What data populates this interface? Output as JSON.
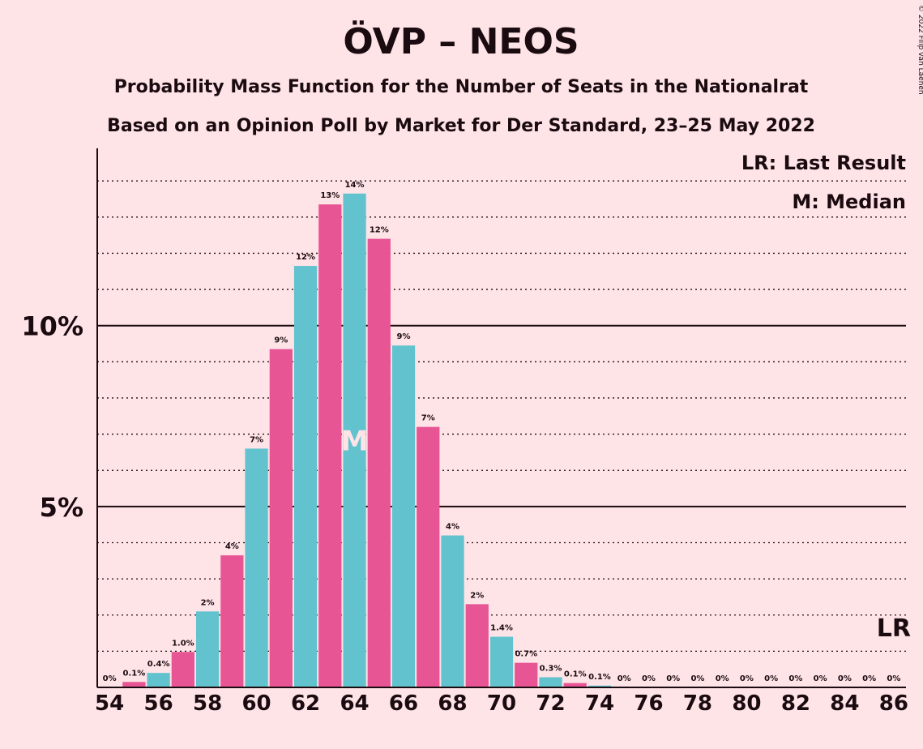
{
  "chart_data": {
    "type": "bar",
    "title": "ÖVP – NEOS",
    "subtitle": "Probability Mass Function for the Number of Seats in the Nationalrat",
    "subtitle2": "Based on an Opinion Poll by Market for Der Standard, 23–25 May 2022",
    "copyright": "© 2022 Filip van Laenen",
    "legend": {
      "position": "top-right",
      "last_result": "LR: Last Result",
      "median": "M: Median"
    },
    "x": [
      54,
      55,
      56,
      57,
      58,
      59,
      60,
      61,
      62,
      63,
      64,
      65,
      66,
      67,
      68,
      69,
      70,
      71,
      72,
      73,
      74,
      75,
      76,
      77,
      78,
      79,
      80,
      81,
      82,
      83,
      84,
      85,
      86
    ],
    "values": [
      0,
      0.15,
      0.4,
      0.98,
      2.1,
      3.65,
      6.6,
      9.35,
      11.65,
      13.35,
      13.65,
      12.4,
      9.45,
      7.2,
      4.2,
      2.3,
      1.4,
      0.68,
      0.28,
      0.12,
      0.05,
      0,
      0,
      0,
      0,
      0,
      0,
      0,
      0,
      0,
      0,
      0,
      0
    ],
    "data_labels": [
      "0%",
      "0.1%",
      "0.4%",
      "1.0%",
      "2%",
      "4%",
      "7%",
      "9%",
      "12%",
      "13%",
      "14%",
      "12%",
      "9%",
      "7%",
      "4%",
      "2%",
      "1.4%",
      "0.7%",
      "0.3%",
      "0.1%",
      "0.1%",
      "0%",
      "0%",
      "0%",
      "0%",
      "0%",
      "0%",
      "0%",
      "0%",
      "0%",
      "0%",
      "0%",
      "0%"
    ],
    "x_ticks": [
      "54",
      "56",
      "58",
      "60",
      "62",
      "64",
      "66",
      "68",
      "70",
      "72",
      "74",
      "76",
      "78",
      "80",
      "82",
      "84",
      "86"
    ],
    "y_ticks": [
      {
        "value": 5,
        "label": "5%"
      },
      {
        "value": 10,
        "label": "10%"
      }
    ],
    "ylim": [
      0,
      14.9
    ],
    "xlim": [
      53.5,
      86.5
    ],
    "median": {
      "seat": 64,
      "label": "M"
    },
    "last_result": {
      "seat": 86,
      "label": "LR"
    },
    "minor_grid_step": 1,
    "colors": {
      "even": "#62C3CF",
      "odd": "#E85594",
      "background": "#FEE3E7",
      "text": "#1a0b10"
    }
  }
}
